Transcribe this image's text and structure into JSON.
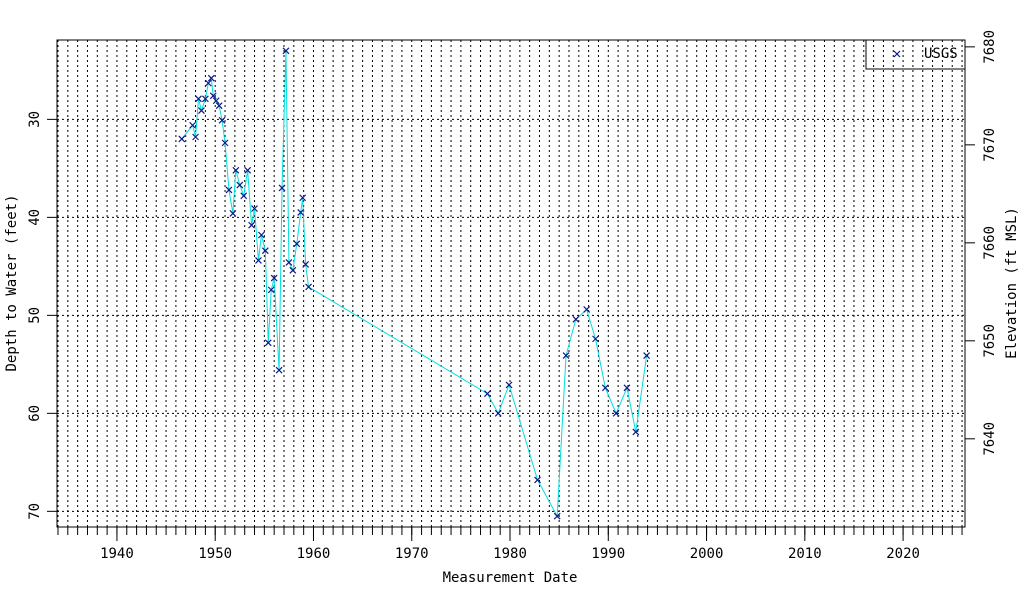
{
  "chart_data": {
    "type": "line",
    "xlabel": "Measurement Date",
    "ylabel": "Depth to Water (feet)",
    "y2label": "Elevation (ft MSL)",
    "xlim": [
      1933.9,
      2026.3
    ],
    "xticks": [
      1940,
      1950,
      1960,
      1970,
      1980,
      1990,
      2000,
      2010,
      2020
    ],
    "x_minor_step": 1,
    "ylim": [
      71.6,
      21.9
    ],
    "yticks": [
      30,
      40,
      50,
      60,
      70
    ],
    "y2lim": [
      7631.0,
      7680.7
    ],
    "y2ticks": [
      7640,
      7650,
      7660,
      7670,
      7680
    ],
    "grid": true,
    "legend": "upper right",
    "line_color": "#00dede",
    "x": [
      1946.6,
      1947.7,
      1948.0,
      1948.3,
      1948.6,
      1949.0,
      1949.3,
      1949.6,
      1949.8,
      1950.1,
      1950.4,
      1950.7,
      1951.0,
      1951.4,
      1951.8,
      1952.1,
      1952.5,
      1952.9,
      1953.3,
      1953.7,
      1954.0,
      1954.4,
      1954.7,
      1955.1,
      1955.4,
      1955.7,
      1956.0,
      1956.5,
      1956.8,
      1957.2,
      1957.5,
      1957.9,
      1958.3,
      1958.7,
      1958.9,
      1959.2,
      1959.5,
      1977.7,
      1978.8,
      1979.9,
      1982.8,
      1984.8,
      1985.7,
      1986.7,
      1987.8,
      1988.7,
      1989.7,
      1990.8,
      1991.9,
      1992.8,
      1993.9
    ],
    "series": [
      {
        "name": "USGS",
        "color": "#0a1a8c",
        "values": [
          32.0,
          30.6,
          31.8,
          27.9,
          29.1,
          27.9,
          26.3,
          25.8,
          27.6,
          28.1,
          28.6,
          30.1,
          32.4,
          37.2,
          39.6,
          35.2,
          36.7,
          37.8,
          35.2,
          40.8,
          39.1,
          44.4,
          41.8,
          43.4,
          52.8,
          47.4,
          46.2,
          55.6,
          37.0,
          23.0,
          44.6,
          45.4,
          42.7,
          39.5,
          38.0,
          44.8,
          47.1,
          58.0,
          60.0,
          57.1,
          66.8,
          70.5,
          54.1,
          50.4,
          49.4,
          52.4,
          57.4,
          60.0,
          57.4,
          61.9,
          54.1
        ]
      }
    ]
  }
}
